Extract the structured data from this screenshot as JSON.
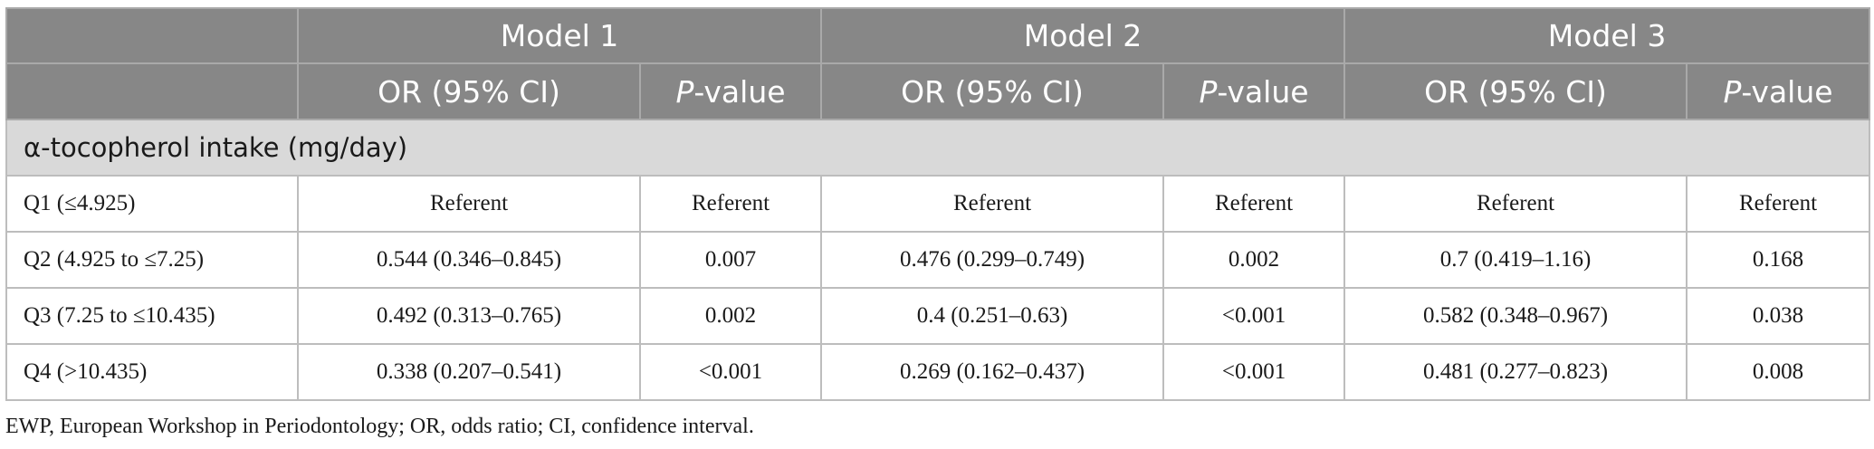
{
  "header": {
    "models": [
      "Model 1",
      "Model 2",
      "Model 3"
    ],
    "or_label": "OR (95% CI)",
    "p_italic": "P",
    "p_suffix": "-value"
  },
  "section_label": "α-tocopherol intake (mg/day)",
  "rows": [
    {
      "label": "Q1 (≤4.925)",
      "m1_or": "Referent",
      "m1_p": "Referent",
      "m2_or": "Referent",
      "m2_p": "Referent",
      "m3_or": "Referent",
      "m3_p": "Referent"
    },
    {
      "label": "Q2 (4.925 to ≤7.25)",
      "m1_or": "0.544 (0.346–0.845)",
      "m1_p": "0.007",
      "m2_or": "0.476 (0.299–0.749)",
      "m2_p": "0.002",
      "m3_or": "0.7 (0.419–1.16)",
      "m3_p": "0.168"
    },
    {
      "label": "Q3 (7.25 to ≤10.435)",
      "m1_or": "0.492 (0.313–0.765)",
      "m1_p": "0.002",
      "m2_or": "0.4 (0.251–0.63)",
      "m2_p": "<0.001",
      "m3_or": "0.582 (0.348–0.967)",
      "m3_p": "0.038"
    },
    {
      "label": "Q4 (>10.435)",
      "m1_or": "0.338 (0.207–0.541)",
      "m1_p": "<0.001",
      "m2_or": "0.269 (0.162–0.437)",
      "m2_p": "<0.001",
      "m3_or": "0.481 (0.277–0.823)",
      "m3_p": "0.008"
    }
  ],
  "footnote": "EWP, European Workshop in Periodontology; OR, odds ratio; CI, confidence interval."
}
